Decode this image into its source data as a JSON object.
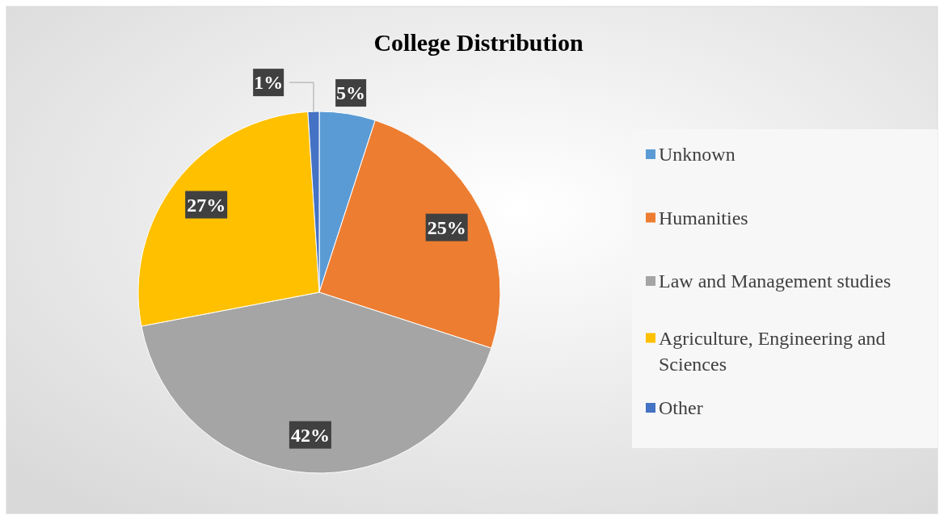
{
  "chart_data": {
    "type": "pie",
    "title": "College Distribution",
    "categories": [
      "Unknown",
      "Humanities",
      "Law and Management studies",
      "Agriculture, Engineering and Sciences",
      "Other"
    ],
    "values": [
      5,
      25,
      42,
      27,
      1
    ],
    "colors": [
      "#5b9bd5",
      "#ed7d31",
      "#a5a5a5",
      "#ffc000",
      "#4472c4"
    ],
    "value_labels": [
      "5%",
      "25%",
      "42%",
      "27%",
      "1%"
    ],
    "legend": "right"
  }
}
